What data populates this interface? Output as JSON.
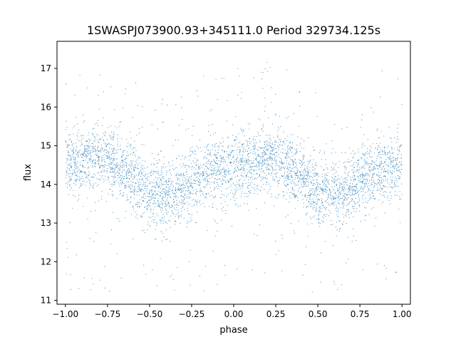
{
  "chart_data": {
    "type": "scatter",
    "title": "1SWASPJ073900.93+345111.0 Period 329734.125s",
    "xlabel": "phase",
    "ylabel": "flux",
    "xlim": [
      -1.05,
      1.05
    ],
    "ylim": [
      10.9,
      17.7
    ],
    "x_ticks": [
      -1.0,
      -0.75,
      -0.5,
      -0.25,
      0.0,
      0.25,
      0.5,
      0.75,
      1.0
    ],
    "x_tick_labels": [
      "−1.00",
      "−0.75",
      "−0.50",
      "−0.25",
      "0.00",
      "0.25",
      "0.50",
      "0.75",
      "1.00"
    ],
    "y_ticks": [
      11,
      12,
      13,
      14,
      15,
      16,
      17
    ],
    "y_tick_labels": [
      "11",
      "12",
      "13",
      "14",
      "15",
      "16",
      "17"
    ],
    "grid": false,
    "marker_color": "#1f77b4",
    "x_range": [
      -1.0,
      1.0
    ],
    "profile_phase": [
      0.0,
      0.1,
      0.2,
      0.3,
      0.4,
      0.5,
      0.6,
      0.7,
      0.8,
      0.9,
      1.0
    ],
    "profile_flux": [
      14.5,
      14.6,
      14.7,
      14.5,
      14.2,
      13.8,
      13.7,
      13.9,
      14.2,
      14.4,
      14.5
    ],
    "dip_phases": [
      0.3,
      0.6,
      0.65,
      0.7,
      0.85
    ],
    "dip_flux_min": 11.2
  }
}
